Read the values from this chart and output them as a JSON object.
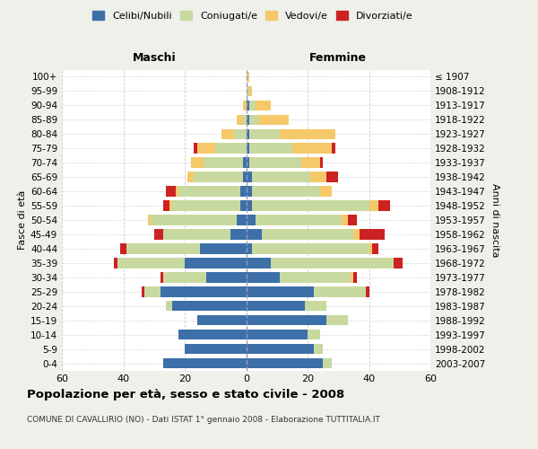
{
  "age_groups": [
    "0-4",
    "5-9",
    "10-14",
    "15-19",
    "20-24",
    "25-29",
    "30-34",
    "35-39",
    "40-44",
    "45-49",
    "50-54",
    "55-59",
    "60-64",
    "65-69",
    "70-74",
    "75-79",
    "80-84",
    "85-89",
    "90-94",
    "95-99",
    "100+"
  ],
  "birth_years": [
    "2003-2007",
    "1998-2002",
    "1993-1997",
    "1988-1992",
    "1983-1987",
    "1978-1982",
    "1973-1977",
    "1968-1972",
    "1963-1967",
    "1958-1962",
    "1953-1957",
    "1948-1952",
    "1943-1947",
    "1938-1942",
    "1933-1937",
    "1928-1932",
    "1923-1927",
    "1918-1922",
    "1913-1917",
    "1908-1912",
    "≤ 1907"
  ],
  "males": {
    "celibe": [
      27,
      20,
      22,
      16,
      24,
      28,
      13,
      20,
      15,
      5,
      3,
      2,
      2,
      1,
      1,
      0,
      0,
      0,
      0,
      0,
      0
    ],
    "coniugato": [
      0,
      0,
      0,
      0,
      2,
      5,
      14,
      22,
      24,
      22,
      28,
      22,
      20,
      16,
      13,
      10,
      4,
      1,
      0,
      0,
      0
    ],
    "vedovo": [
      0,
      0,
      0,
      0,
      0,
      0,
      0,
      0,
      0,
      0,
      1,
      1,
      1,
      2,
      4,
      6,
      4,
      2,
      1,
      0,
      0
    ],
    "divorziato": [
      0,
      0,
      0,
      0,
      0,
      1,
      1,
      1,
      2,
      3,
      0,
      2,
      3,
      0,
      0,
      1,
      0,
      0,
      0,
      0,
      0
    ]
  },
  "females": {
    "nubile": [
      25,
      22,
      20,
      26,
      19,
      22,
      11,
      8,
      2,
      5,
      3,
      2,
      2,
      2,
      1,
      1,
      1,
      1,
      1,
      0,
      0
    ],
    "coniugata": [
      3,
      3,
      4,
      7,
      7,
      17,
      23,
      40,
      38,
      30,
      28,
      38,
      22,
      19,
      17,
      14,
      10,
      3,
      2,
      1,
      0
    ],
    "vedova": [
      0,
      0,
      0,
      0,
      0,
      0,
      1,
      0,
      1,
      2,
      2,
      3,
      4,
      5,
      6,
      13,
      18,
      10,
      5,
      1,
      1
    ],
    "divorziata": [
      0,
      0,
      0,
      0,
      0,
      1,
      1,
      3,
      2,
      8,
      3,
      4,
      0,
      4,
      1,
      1,
      0,
      0,
      0,
      0,
      0
    ]
  },
  "colors": {
    "celibe": "#3d6fa8",
    "coniugato": "#c8d9a0",
    "vedovo": "#f5c96a",
    "divorziato": "#cc2222"
  },
  "legend_labels": [
    "Celibi/Nubili",
    "Coniugati/e",
    "Vedovi/e",
    "Divorziati/e"
  ],
  "title": "Popolazione per età, sesso e stato civile - 2008",
  "subtitle": "COMUNE DI CAVALLIRIO (NO) - Dati ISTAT 1° gennaio 2008 - Elaborazione TUTTITALIA.IT",
  "xlabel_left": "Maschi",
  "xlabel_right": "Femmine",
  "ylabel_left": "Fasce di età",
  "ylabel_right": "Anni di nascita",
  "xlim": 60,
  "bg_color": "#f0f0eb",
  "plot_bg": "#ffffff",
  "grid_color": "#cccccc"
}
